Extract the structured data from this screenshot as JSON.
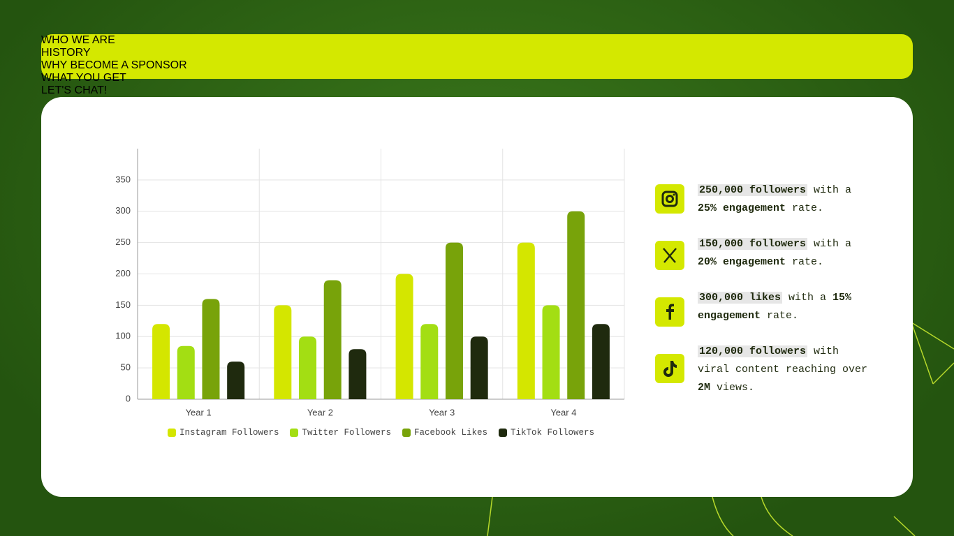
{
  "nav": [
    "WHO WE ARE",
    "HISTORY",
    "WHY BECOME A SPONSOR",
    "WHAT YOU GET",
    "LET'S CHAT!"
  ],
  "chart_data": {
    "type": "bar",
    "categories": [
      "Year 1",
      "Year 2",
      "Year 3",
      "Year 4"
    ],
    "series": [
      {
        "name": "Instagram Followers",
        "color": "#d4e600",
        "values": [
          120,
          150,
          200,
          250
        ]
      },
      {
        "name": "Twitter Followers",
        "color": "#a3de13",
        "values": [
          85,
          100,
          120,
          150
        ]
      },
      {
        "name": "Facebook Likes",
        "color": "#78a30a",
        "values": [
          160,
          190,
          250,
          300
        ]
      },
      {
        "name": "TikTok Followers",
        "color": "#1f2a0e",
        "values": [
          60,
          80,
          100,
          120
        ]
      }
    ],
    "ylim": [
      0,
      400
    ],
    "yticks": [
      0,
      50,
      100,
      150,
      200,
      250,
      300,
      350
    ],
    "grid": true
  },
  "stats": [
    [
      {
        "text": "250,000 followers",
        "bold": true
      },
      {
        "text": " with a ",
        "bold": false
      },
      {
        "text": "25% engagement",
        "bold": true
      },
      {
        "text": " rate.",
        "bold": false
      }
    ],
    [
      {
        "text": "150,000 followers",
        "bold": true
      },
      {
        "text": " with a ",
        "bold": false
      },
      {
        "text": "20% engagement",
        "bold": true
      },
      {
        "text": " rate.",
        "bold": false
      }
    ],
    [
      {
        "text": "300,000 likes",
        "bold": true
      },
      {
        "text": " with a ",
        "bold": false
      },
      {
        "text": "15% engagement",
        "bold": true
      },
      {
        "text": " rate.",
        "bold": false
      }
    ],
    [
      {
        "text": "120,000 followers",
        "bold": true
      },
      {
        "text": " with viral content reaching over ",
        "bold": false
      },
      {
        "text": "2M",
        "bold": true
      },
      {
        "text": " views.",
        "bold": false
      }
    ]
  ]
}
